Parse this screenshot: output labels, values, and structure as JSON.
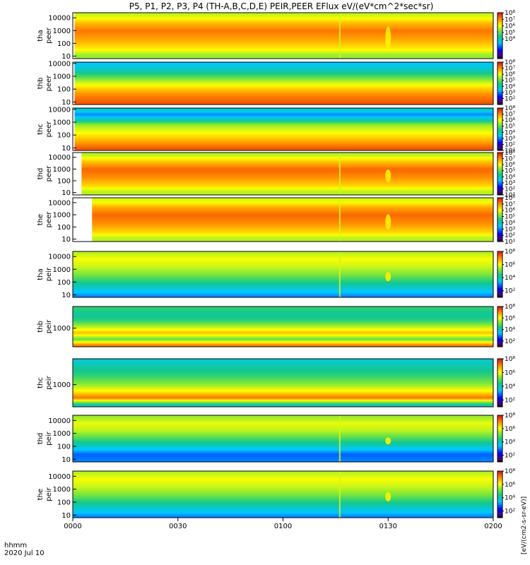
{
  "chart_data": {
    "type": "heatmap",
    "title": "P5, P1, P2, P3, P4 (TH-A,B,C,D,E) PEIR,PEER EFlux eV/(eV*cm^2*sec*sr)",
    "x_axis": {
      "label_line1": "hhmm",
      "label_line2": "2020 Jul 10",
      "ticks": [
        "0000",
        "0030",
        "0100",
        "0130",
        "0200"
      ],
      "tick_minutes": [
        0,
        30,
        60,
        90,
        120
      ],
      "range_minutes": [
        0,
        120
      ]
    },
    "colorbar": {
      "unit_label": "[eV/(cm2-s-sr-eV)]",
      "log_min_exponent": 1,
      "log_max_exponent": 8
    },
    "panels": [
      {
        "probe": "tha",
        "species": "peer",
        "y_ticks": [
          "10",
          "100",
          "1000",
          "10000"
        ],
        "y_log_range": [
          0.8,
          4.4
        ],
        "start_minute": 0.5,
        "bands": [
          {
            "y": 1.1,
            "level": 5.4
          },
          {
            "y": 1.6,
            "level": 6.2
          },
          {
            "y": 2.3,
            "level": 6.8
          },
          {
            "y": 3.0,
            "level": 7.2
          },
          {
            "y": 3.6,
            "level": 6.6
          },
          {
            "y": 4.2,
            "level": 5.7
          }
        ],
        "event_minute": 76,
        "event_depth": 1.0,
        "colorbar_ticks": [
          4,
          5,
          6,
          7,
          8
        ]
      },
      {
        "probe": "thb",
        "species": "peer",
        "y_ticks": [
          "10",
          "100",
          "1000",
          "10000"
        ],
        "y_log_range": [
          0.8,
          4.1
        ],
        "start_minute": 0.5,
        "bands": [
          {
            "y": 1.0,
            "level": 7.4
          },
          {
            "y": 1.6,
            "level": 7.0
          },
          {
            "y": 2.1,
            "level": 6.4
          },
          {
            "y": 2.6,
            "level": 5.6
          },
          {
            "y": 3.0,
            "level": 4.8
          },
          {
            "y": 3.6,
            "level": 3.8
          },
          {
            "y": 4.0,
            "level": 3.4
          }
        ],
        "event_minute": 0,
        "event_depth": 0,
        "colorbar_ticks": [
          2,
          3,
          4,
          5,
          6,
          7,
          8
        ]
      },
      {
        "probe": "thc",
        "species": "peer",
        "y_ticks": [
          "10",
          "100",
          "1000",
          "10000"
        ],
        "y_log_range": [
          0.8,
          4.1
        ],
        "start_minute": 0.5,
        "bands": [
          {
            "y": 1.0,
            "level": 7.4
          },
          {
            "y": 1.5,
            "level": 6.8
          },
          {
            "y": 2.2,
            "level": 6.0
          },
          {
            "y": 2.8,
            "level": 5.4
          },
          {
            "y": 3.2,
            "level": 4.0
          },
          {
            "y": 3.6,
            "level": 3.0
          },
          {
            "y": 4.0,
            "level": 3.8
          }
        ],
        "event_minute": 0,
        "event_depth": 0,
        "colorbar_ticks": [
          1,
          2,
          3,
          4,
          5,
          6,
          7,
          8
        ]
      },
      {
        "probe": "thd",
        "species": "peer",
        "y_ticks": [
          "10",
          "100",
          "1000",
          "10000"
        ],
        "y_log_range": [
          0.8,
          4.4
        ],
        "start_minute": 2.5,
        "bands": [
          {
            "y": 1.1,
            "level": 5.6
          },
          {
            "y": 1.6,
            "level": 6.4
          },
          {
            "y": 2.3,
            "level": 7.0
          },
          {
            "y": 3.0,
            "level": 7.3
          },
          {
            "y": 3.6,
            "level": 6.6
          },
          {
            "y": 4.2,
            "level": 5.6
          }
        ],
        "event_minute": 76,
        "event_depth": 0.6,
        "colorbar_ticks": [
          1,
          2,
          3,
          4,
          5,
          6,
          7,
          8
        ]
      },
      {
        "probe": "the",
        "species": "peer",
        "y_ticks": [
          "10",
          "100",
          "1000",
          "10000"
        ],
        "y_log_range": [
          0.8,
          4.4
        ],
        "start_minute": 5.5,
        "bands": [
          {
            "y": 1.1,
            "level": 5.6
          },
          {
            "y": 1.6,
            "level": 6.4
          },
          {
            "y": 2.3,
            "level": 7.0
          },
          {
            "y": 3.0,
            "level": 7.3
          },
          {
            "y": 3.6,
            "level": 6.8
          },
          {
            "y": 4.2,
            "level": 5.8
          }
        ],
        "event_minute": 76,
        "event_depth": 0.7,
        "colorbar_ticks": [
          1,
          2,
          3,
          4,
          5,
          6,
          7,
          8
        ]
      },
      {
        "probe": "tha",
        "species": "peir",
        "y_ticks": [
          "10",
          "100",
          "1000",
          "10000"
        ],
        "y_log_range": [
          0.8,
          4.4
        ],
        "start_minute": 0,
        "bands": [
          {
            "y": 0.9,
            "level": 3.0
          },
          {
            "y": 1.4,
            "level": 3.6
          },
          {
            "y": 2.0,
            "level": 4.4
          },
          {
            "y": 2.6,
            "level": 5.2
          },
          {
            "y": 3.2,
            "level": 5.7
          },
          {
            "y": 3.8,
            "level": 6.0
          },
          {
            "y": 4.3,
            "level": 5.6
          }
        ],
        "event_minute": 76,
        "event_depth": 0.4,
        "colorbar_ticks": [
          2,
          4,
          6,
          8
        ]
      },
      {
        "probe": "thb",
        "species": "peir",
        "y_ticks": [
          "1000"
        ],
        "y_log_range": [
          1.8,
          4.4
        ],
        "start_minute": 0,
        "bands": [
          {
            "y": 1.9,
            "level": 7.2
          },
          {
            "y": 2.3,
            "level": 5.0
          },
          {
            "y": 2.7,
            "level": 6.6
          },
          {
            "y": 3.1,
            "level": 5.6
          },
          {
            "y": 3.5,
            "level": 4.6
          },
          {
            "y": 3.9,
            "level": 4.2
          },
          {
            "y": 4.3,
            "level": 4.6
          }
        ],
        "event_minute": 0,
        "event_depth": 0,
        "colorbar_ticks": [
          2,
          4,
          6,
          8
        ]
      },
      {
        "probe": "thc",
        "species": "peir",
        "y_ticks": [
          "1000"
        ],
        "y_log_range": [
          1.8,
          4.4
        ],
        "start_minute": 0,
        "bands": [
          {
            "y": 1.9,
            "level": 4.0
          },
          {
            "y": 2.3,
            "level": 7.2
          },
          {
            "y": 2.7,
            "level": 6.0
          },
          {
            "y": 3.1,
            "level": 5.2
          },
          {
            "y": 3.5,
            "level": 4.6
          },
          {
            "y": 3.9,
            "level": 4.2
          },
          {
            "y": 4.3,
            "level": 3.8
          }
        ],
        "event_minute": 0,
        "event_depth": 0,
        "colorbar_ticks": [
          2,
          4,
          6,
          8
        ]
      },
      {
        "probe": "thd",
        "species": "peir",
        "y_ticks": [
          "10",
          "100",
          "1000",
          "10000"
        ],
        "y_log_range": [
          0.8,
          4.4
        ],
        "start_minute": 0,
        "bands": [
          {
            "y": 0.9,
            "level": 3.0
          },
          {
            "y": 1.4,
            "level": 2.8
          },
          {
            "y": 2.0,
            "level": 3.8
          },
          {
            "y": 2.6,
            "level": 4.8
          },
          {
            "y": 3.2,
            "level": 5.6
          },
          {
            "y": 3.8,
            "level": 5.9
          },
          {
            "y": 4.3,
            "level": 5.4
          }
        ],
        "event_minute": 76,
        "event_depth": 0.3,
        "colorbar_ticks": [
          2,
          4,
          6,
          8
        ]
      },
      {
        "probe": "the",
        "species": "peir",
        "y_ticks": [
          "10",
          "100",
          "1000",
          "10000"
        ],
        "y_log_range": [
          0.8,
          4.4
        ],
        "start_minute": 0,
        "bands": [
          {
            "y": 0.9,
            "level": 3.0
          },
          {
            "y": 1.4,
            "level": 3.6
          },
          {
            "y": 2.0,
            "level": 4.4
          },
          {
            "y": 2.6,
            "level": 5.2
          },
          {
            "y": 3.2,
            "level": 5.7
          },
          {
            "y": 3.8,
            "level": 6.0
          },
          {
            "y": 4.3,
            "level": 5.6
          }
        ],
        "event_minute": 76,
        "event_depth": 0.4,
        "colorbar_ticks": [
          2,
          4,
          6,
          8
        ]
      }
    ]
  }
}
